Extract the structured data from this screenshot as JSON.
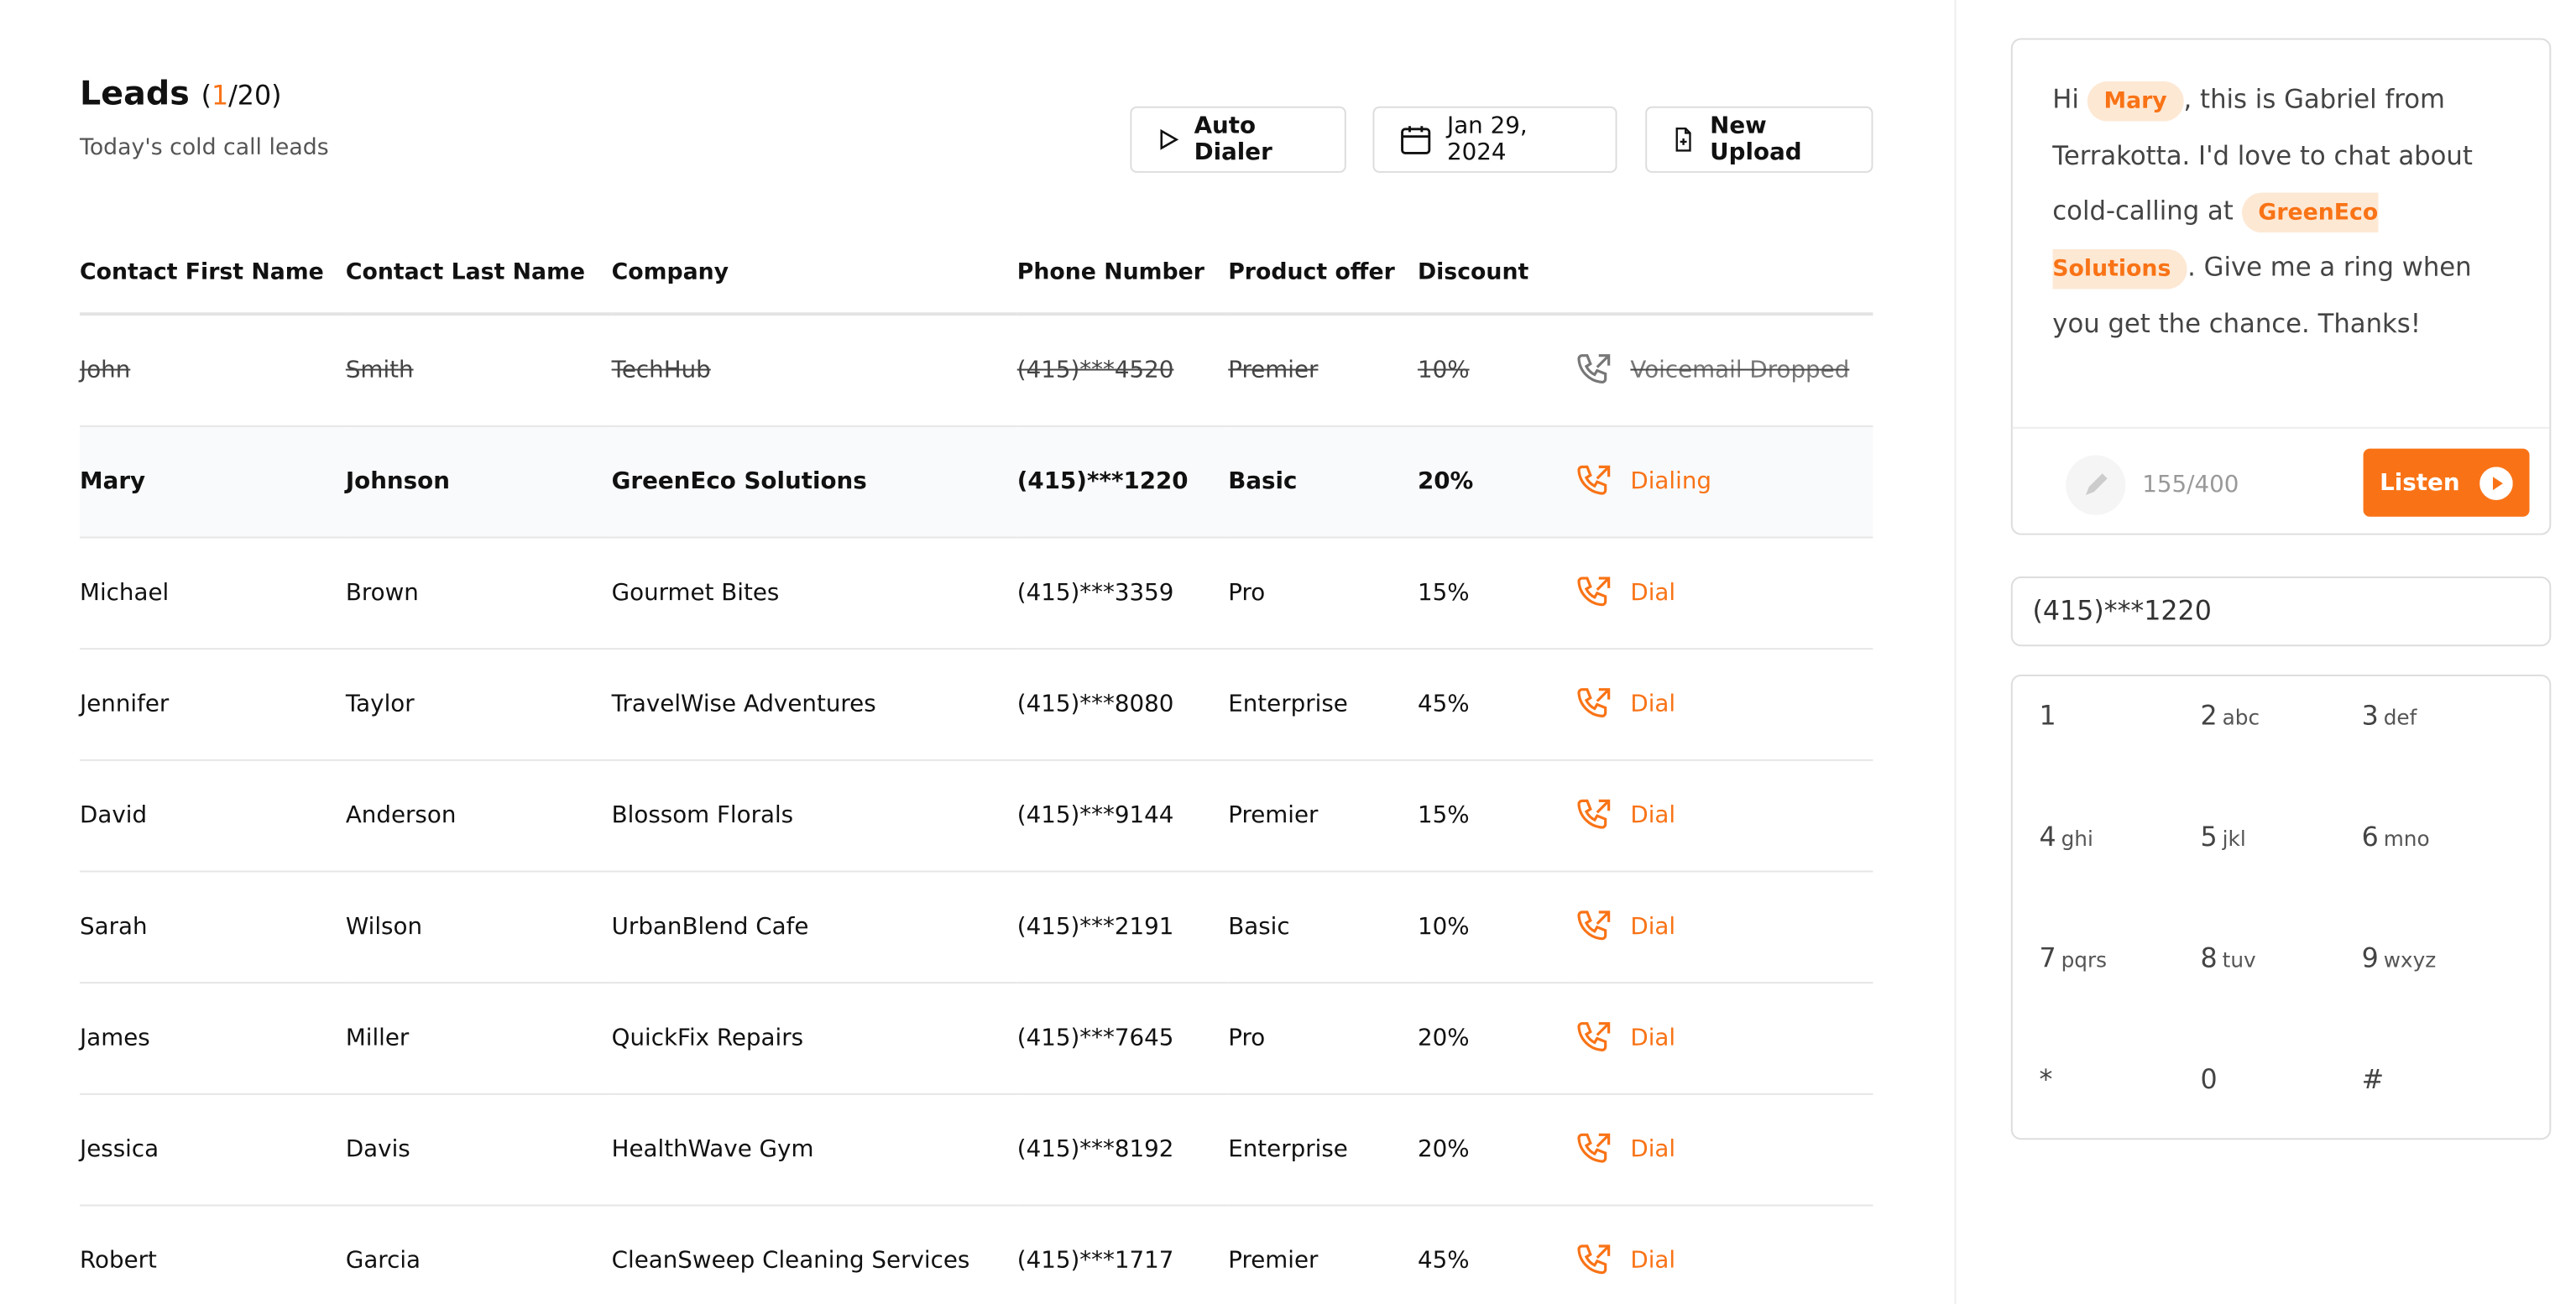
{
  "header": {
    "title": "Leads",
    "count": [
      "(",
      "1",
      "/20)"
    ],
    "subtitle": "Today's cold call leads"
  },
  "toolbar": {
    "auto_dialer": "Auto Dialer",
    "date": "Jan 29, 2024",
    "new_upload": "New Upload"
  },
  "table": {
    "columns": [
      "Contact First Name",
      "Contact Last Name",
      "Company",
      "Phone Number",
      "Product offer",
      "Discount"
    ],
    "rows": [
      [
        "John",
        "Smith",
        "TechHub",
        "(415)***4520",
        "Premier",
        "10%",
        "Voicemail Dropped"
      ],
      [
        "Mary",
        "Johnson",
        "GreenEco Solutions",
        "(415)***1220",
        "Basic",
        "20%",
        "Dialing"
      ],
      [
        "Michael",
        "Brown",
        "Gourmet Bites",
        "(415)***3359",
        "Pro",
        "15%",
        "Dial"
      ],
      [
        "Jennifer",
        "Taylor",
        "TravelWise Adventures",
        "(415)***8080",
        "Enterprise",
        "45%",
        "Dial"
      ],
      [
        "David",
        "Anderson",
        "Blossom Florals",
        "(415)***9144",
        "Premier",
        "15%",
        "Dial"
      ],
      [
        "Sarah",
        "Wilson",
        "UrbanBlend Cafe",
        "(415)***2191",
        "Basic",
        "10%",
        "Dial"
      ],
      [
        "James",
        "Miller",
        "QuickFix Repairs",
        "(415)***7645",
        "Pro",
        "20%",
        "Dial"
      ],
      [
        "Jessica",
        "Davis",
        "HealthWave Gym",
        "(415)***8192",
        "Enterprise",
        "20%",
        "Dial"
      ],
      [
        "Robert",
        "Garcia",
        "CleanSweep Cleaning Services",
        "(415)***1717",
        "Premier",
        "45%",
        "Dial"
      ]
    ]
  },
  "script": {
    "parts": [
      "Hi ",
      "Mary",
      ", this is Gabriel from Terrakotta. I'd love to chat about cold-calling at ",
      "GreenEco Solutions",
      ". Give me a ring when you get the chance. Thanks!"
    ],
    "char_count": "155/400",
    "listen": "Listen"
  },
  "dialer": {
    "number": "(415)***1220",
    "keys": [
      [
        "1",
        ""
      ],
      [
        "2",
        "abc"
      ],
      [
        "3",
        "def"
      ],
      [
        "4",
        "ghi"
      ],
      [
        "5",
        "jkl"
      ],
      [
        "6",
        "mno"
      ],
      [
        "7",
        "pqrs"
      ],
      [
        "8",
        "tuv"
      ],
      [
        "9",
        "wxyz"
      ],
      [
        "*",
        ""
      ],
      [
        "0",
        ""
      ],
      [
        "#",
        ""
      ]
    ]
  }
}
